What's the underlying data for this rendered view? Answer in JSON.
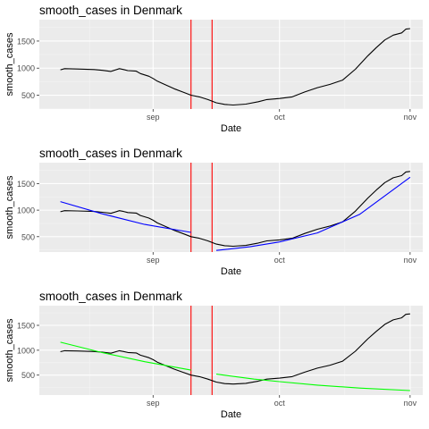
{
  "colors": {
    "panel_bg": "#ebebeb",
    "grid_major": "#ffffff",
    "grid_minor": "#f4f4f4",
    "series": "#000000",
    "vline": "#ff0000",
    "fit_panel2": "#0000ff",
    "fit_panel3": "#00ff00",
    "tick_text": "#4d4d4d"
  },
  "chart_data": [
    {
      "type": "line",
      "title": "smooth_cases in Denmark",
      "xlabel": "Date",
      "ylabel": "smooth_cases",
      "x_ticks": [
        {
          "label": "sep",
          "date": "2020-09-01"
        },
        {
          "label": "oct",
          "date": "2020-10-01"
        },
        {
          "label": "nov",
          "date": "2020-11-01"
        }
      ],
      "y_ticks": [
        500,
        1000,
        1500
      ],
      "xlim": [
        "2020-08-05",
        "2020-11-04"
      ],
      "ylim": [
        245,
        1895
      ],
      "grid": true,
      "vlines": [
        "2020-09-10",
        "2020-09-15"
      ],
      "series": [
        {
          "x": [
            "2020-08-10",
            "2020-08-11",
            "2020-08-14",
            "2020-08-18",
            "2020-08-20",
            "2020-08-22",
            "2020-08-24",
            "2020-08-25",
            "2020-08-26",
            "2020-08-28",
            "2020-08-29",
            "2020-08-31",
            "2020-09-01",
            "2020-09-02",
            "2020-09-04",
            "2020-09-06",
            "2020-09-08",
            "2020-09-10",
            "2020-09-12",
            "2020-09-14",
            "2020-09-16",
            "2020-09-18",
            "2020-09-20",
            "2020-09-23",
            "2020-09-26",
            "2020-09-28",
            "2020-10-01",
            "2020-10-04",
            "2020-10-07",
            "2020-10-10",
            "2020-10-13",
            "2020-10-16",
            "2020-10-19",
            "2020-10-22",
            "2020-10-24",
            "2020-10-26",
            "2020-10-28",
            "2020-10-30",
            "2020-10-31",
            "2020-11-01"
          ],
          "y": [
            970,
            990,
            985,
            975,
            960,
            940,
            990,
            975,
            955,
            945,
            900,
            850,
            810,
            760,
            690,
            620,
            560,
            500,
            470,
            420,
            360,
            330,
            320,
            335,
            380,
            420,
            440,
            470,
            560,
            640,
            700,
            780,
            980,
            1230,
            1380,
            1520,
            1610,
            1650,
            1720,
            1730
          ]
        }
      ]
    },
    {
      "type": "line",
      "title": "smooth_cases in Denmark",
      "xlabel": "Date",
      "ylabel": "smooth_cases",
      "x_ticks": [
        {
          "label": "sep",
          "date": "2020-09-01"
        },
        {
          "label": "oct",
          "date": "2020-10-01"
        },
        {
          "label": "nov",
          "date": "2020-11-01"
        }
      ],
      "y_ticks": [
        500,
        1000,
        1500
      ],
      "xlim": [
        "2020-08-05",
        "2020-11-04"
      ],
      "ylim": [
        210,
        1895
      ],
      "grid": true,
      "vlines": [
        "2020-09-10",
        "2020-09-15"
      ],
      "series": [
        {
          "x": [
            "2020-08-10",
            "2020-08-11",
            "2020-08-14",
            "2020-08-18",
            "2020-08-20",
            "2020-08-22",
            "2020-08-24",
            "2020-08-25",
            "2020-08-26",
            "2020-08-28",
            "2020-08-29",
            "2020-08-31",
            "2020-09-01",
            "2020-09-02",
            "2020-09-04",
            "2020-09-06",
            "2020-09-08",
            "2020-09-10",
            "2020-09-12",
            "2020-09-14",
            "2020-09-16",
            "2020-09-18",
            "2020-09-20",
            "2020-09-23",
            "2020-09-26",
            "2020-09-28",
            "2020-10-01",
            "2020-10-04",
            "2020-10-07",
            "2020-10-10",
            "2020-10-13",
            "2020-10-16",
            "2020-10-19",
            "2020-10-22",
            "2020-10-24",
            "2020-10-26",
            "2020-10-28",
            "2020-10-30",
            "2020-10-31",
            "2020-11-01"
          ],
          "y": [
            970,
            990,
            985,
            975,
            960,
            940,
            990,
            975,
            955,
            945,
            900,
            850,
            810,
            760,
            690,
            620,
            560,
            500,
            470,
            420,
            360,
            330,
            320,
            335,
            380,
            420,
            440,
            470,
            560,
            640,
            700,
            780,
            980,
            1230,
            1380,
            1520,
            1610,
            1650,
            1720,
            1730
          ],
          "color": "#000000"
        },
        {
          "x": [
            "2020-08-10",
            "2020-08-20",
            "2020-08-30",
            "2020-09-10"
          ],
          "y": [
            1160,
            930,
            730,
            580
          ],
          "color": "#0000ff"
        },
        {
          "x": [
            "2020-09-16",
            "2020-09-24",
            "2020-10-01",
            "2020-10-10",
            "2020-10-20",
            "2020-11-01"
          ],
          "y": [
            240,
            310,
            400,
            570,
            920,
            1620
          ],
          "color": "#0000ff"
        }
      ]
    },
    {
      "type": "line",
      "title": "smooth_cases in Denmark",
      "xlabel": "Date",
      "ylabel": "smooth_cases",
      "x_ticks": [
        {
          "label": "sep",
          "date": "2020-09-01"
        },
        {
          "label": "oct",
          "date": "2020-10-01"
        },
        {
          "label": "nov",
          "date": "2020-11-01"
        }
      ],
      "y_ticks": [
        500,
        1000,
        1500
      ],
      "xlim": [
        "2020-08-05",
        "2020-11-04"
      ],
      "ylim": [
        100,
        1895
      ],
      "grid": true,
      "vlines": [
        "2020-09-10",
        "2020-09-15"
      ],
      "series": [
        {
          "x": [
            "2020-08-10",
            "2020-08-11",
            "2020-08-14",
            "2020-08-18",
            "2020-08-20",
            "2020-08-22",
            "2020-08-24",
            "2020-08-25",
            "2020-08-26",
            "2020-08-28",
            "2020-08-29",
            "2020-08-31",
            "2020-09-01",
            "2020-09-02",
            "2020-09-04",
            "2020-09-06",
            "2020-09-08",
            "2020-09-10",
            "2020-09-12",
            "2020-09-14",
            "2020-09-16",
            "2020-09-18",
            "2020-09-20",
            "2020-09-23",
            "2020-09-26",
            "2020-09-28",
            "2020-10-01",
            "2020-10-04",
            "2020-10-07",
            "2020-10-10",
            "2020-10-13",
            "2020-10-16",
            "2020-10-19",
            "2020-10-22",
            "2020-10-24",
            "2020-10-26",
            "2020-10-28",
            "2020-10-30",
            "2020-10-31",
            "2020-11-01"
          ],
          "y": [
            970,
            990,
            985,
            975,
            960,
            940,
            990,
            975,
            955,
            945,
            900,
            850,
            810,
            760,
            690,
            620,
            560,
            500,
            470,
            420,
            360,
            330,
            320,
            335,
            380,
            420,
            440,
            470,
            560,
            640,
            700,
            780,
            980,
            1230,
            1380,
            1520,
            1610,
            1650,
            1720,
            1730
          ],
          "color": "#000000"
        },
        {
          "x": [
            "2020-08-10",
            "2020-08-20",
            "2020-08-30",
            "2020-09-10"
          ],
          "y": [
            1160,
            950,
            770,
            600
          ],
          "color": "#00ff00"
        },
        {
          "x": [
            "2020-09-16",
            "2020-09-25",
            "2020-10-01",
            "2020-10-10",
            "2020-10-20",
            "2020-11-01"
          ],
          "y": [
            520,
            420,
            370,
            300,
            240,
            190
          ],
          "color": "#00ff00"
        }
      ]
    }
  ]
}
